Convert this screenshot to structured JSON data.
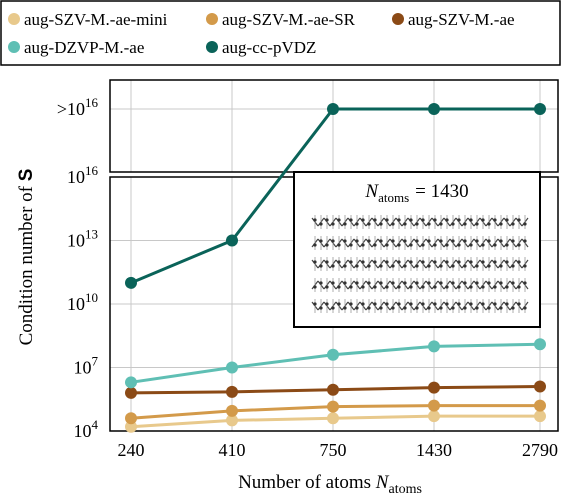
{
  "chart_data": {
    "type": "line",
    "xlabel": "Number of atoms N",
    "xlabel_sub": "atoms",
    "ylabel": "Condition number of S",
    "yscale": "log",
    "ylim_exponents": [
      4,
      17.5
    ],
    "categories": [
      "240",
      "410",
      "750",
      "1430",
      "2790"
    ],
    "y_tick_labels": [
      {
        "base": "10",
        "exp": "4",
        "value": 4
      },
      {
        "base": "10",
        "exp": "7",
        "value": 7
      },
      {
        "base": "10",
        "exp": "10",
        "value": 10
      },
      {
        "base": "10",
        "exp": "13",
        "value": 13
      },
      {
        "base": "10",
        "exp": "16",
        "value": 16
      },
      {
        "prefix": ">",
        "base": "10",
        "exp": "16",
        "value": 17.4
      }
    ],
    "grid": true,
    "legend_position": "top",
    "series": [
      {
        "name": "aug-SZV-M.-ae-mini",
        "color": "#e8c98c",
        "log10_values": [
          4.2,
          4.5,
          4.6,
          4.7,
          4.7
        ]
      },
      {
        "name": "aug-SZV-M.-ae-SR",
        "color": "#d39a4a",
        "log10_values": [
          4.6,
          4.95,
          5.15,
          5.2,
          5.2
        ]
      },
      {
        "name": "aug-SZV-M.-ae",
        "color": "#8b4a16",
        "log10_values": [
          5.8,
          5.85,
          5.95,
          6.05,
          6.1
        ]
      },
      {
        "name": "aug-DZVP-M.-ae",
        "color": "#5fbfb4",
        "log10_values": [
          6.3,
          7.0,
          7.6,
          8.0,
          8.1
        ]
      },
      {
        "name": "aug-cc-pVDZ",
        "color": "#0a6359",
        "log10_values": [
          11.0,
          13.0,
          17.4,
          17.4,
          17.4
        ]
      }
    ],
    "inset": {
      "label": "N",
      "label_sub": "atoms",
      "label_value": "= 1430"
    }
  }
}
